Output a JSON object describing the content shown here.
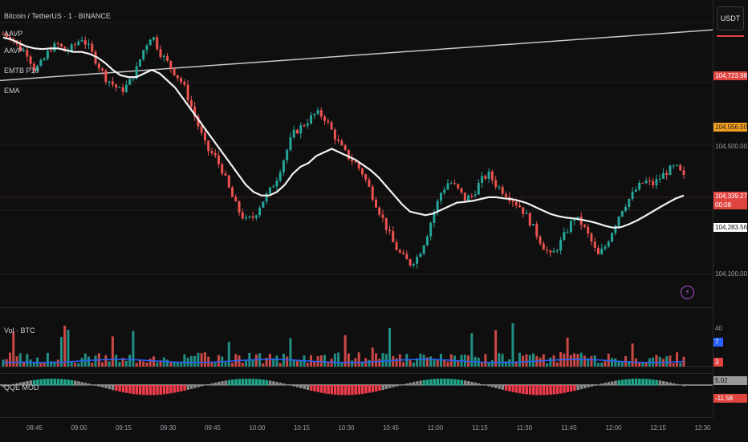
{
  "symbol_title": "Bitcoin / TetherUS · 1 · BINANCE",
  "indicators": [
    "AAVP",
    "AAVP",
    "EMTB P10",
    "EMA"
  ],
  "currency_button": "USDT",
  "price_axis": {
    "levels": [
      "104,500.00",
      "104,100.00"
    ],
    "ema_badge": "104,723.98",
    "orange_badge": "104,556.50",
    "current_price": "104,339.27",
    "countdown": "00:08",
    "white_badge": "104,283.56"
  },
  "volume_pane": {
    "title": "Vol · BTC",
    "scale": "40",
    "badge_blue": "7",
    "badge_red": "3"
  },
  "qqe_pane": {
    "title": "QQE MOD",
    "badge_gray": "5.02",
    "badge_red": "-11.58"
  },
  "time_labels": [
    "08:45",
    "09:00",
    "09:15",
    "09:30",
    "09:45",
    "10:00",
    "10:15",
    "10:30",
    "10:45",
    "11:00",
    "11:15",
    "11:30",
    "11:45",
    "12:00",
    "12:15",
    "12:30"
  ],
  "colors": {
    "up": "#26a69a",
    "down": "#ef5350",
    "ema": "#f2f2f2",
    "volume_ma": "#2962ff"
  },
  "chart_data": {
    "type": "candlestick",
    "price_path": [
      104740,
      104735,
      104700,
      104690,
      104640,
      104660,
      104700,
      104710,
      104690,
      104705,
      104730,
      104700,
      104660,
      104620,
      104600,
      104580,
      104600,
      104640,
      104700,
      104740,
      104690,
      104660,
      104630,
      104600,
      104540,
      104480,
      104420,
      104400,
      104360,
      104300,
      104250,
      104220,
      104230,
      104270,
      104300,
      104340,
      104400,
      104460,
      104480,
      104500,
      104520,
      104510,
      104470,
      104430,
      104400,
      104380,
      104350,
      104300,
      104250,
      104200,
      104150,
      104120,
      104100,
      104120,
      104170,
      104240,
      104300,
      104330,
      104310,
      104280,
      104290,
      104330,
      104350,
      104320,
      104300,
      104280,
      104260,
      104230,
      104190,
      104150,
      104120,
      104150,
      104190,
      104230,
      104210,
      104170,
      104120,
      104150,
      104200,
      104250,
      104280,
      104310,
      104330,
      104320,
      104340,
      104360,
      104370,
      104340
    ],
    "ema_path": [
      104730,
      104725,
      104715,
      104705,
      104700,
      104698,
      104700,
      104700,
      104695,
      104690,
      104690,
      104685,
      104675,
      104660,
      104640,
      104625,
      104620,
      104620,
      104630,
      104640,
      104630,
      104610,
      104590,
      104560,
      104530,
      104500,
      104470,
      104440,
      104410,
      104380,
      104350,
      104320,
      104300,
      104290,
      104290,
      104300,
      104320,
      104350,
      104370,
      104380,
      104400,
      104410,
      104420,
      104410,
      104400,
      104390,
      104375,
      104360,
      104340,
      104315,
      104290,
      104265,
      104245,
      104240,
      104235,
      104240,
      104250,
      104260,
      104270,
      104272,
      104275,
      104280,
      104285,
      104285,
      104282,
      104280,
      104275,
      104268,
      104258,
      104248,
      104238,
      104232,
      104228,
      104226,
      104222,
      104218,
      104212,
      104205,
      104200,
      104202,
      104210,
      104220,
      104232,
      104245,
      104258,
      104270,
      104282,
      104290
    ],
    "price_ylim": [
      104030,
      104790
    ],
    "trendline": [
      104740,
      104785
    ]
  }
}
